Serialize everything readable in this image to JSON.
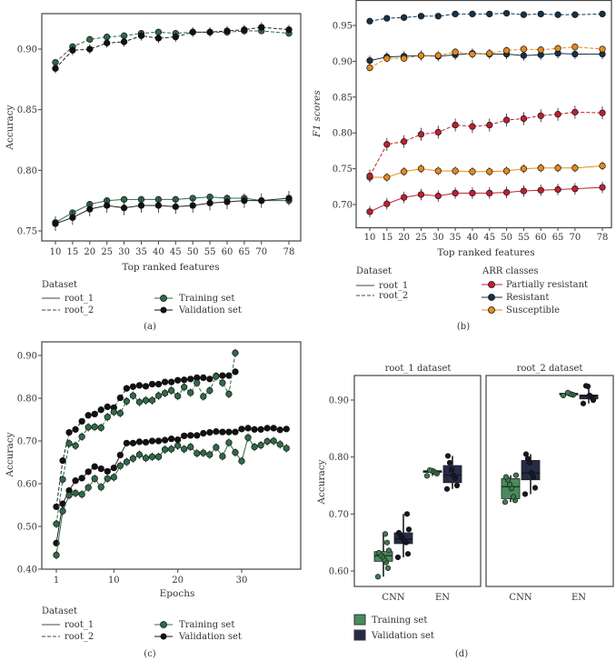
{
  "chart_data": [
    {
      "panel": "(a)",
      "type": "line",
      "xlabel": "Top ranked features",
      "ylabel": "Accuracy",
      "x": [
        10,
        15,
        20,
        25,
        30,
        35,
        40,
        45,
        50,
        55,
        60,
        65,
        70,
        78
      ],
      "yticks": [
        "0.75",
        "0.80",
        "0.85",
        "0.90"
      ],
      "ylim": [
        0.74,
        0.928
      ],
      "series": [
        {
          "name": "Training set",
          "dataset": "root_2",
          "color": "#2f6b47",
          "dash": true,
          "err": 0.002,
          "values": [
            0.889,
            0.902,
            0.908,
            0.91,
            0.911,
            0.913,
            0.914,
            0.913,
            0.914,
            0.914,
            0.914,
            0.915,
            0.915,
            0.913
          ]
        },
        {
          "name": "Validation set",
          "dataset": "root_2",
          "color": "#111111",
          "dash": true,
          "err": 0.004,
          "values": [
            0.884,
            0.899,
            0.9,
            0.905,
            0.906,
            0.911,
            0.909,
            0.91,
            0.914,
            0.914,
            0.915,
            0.916,
            0.918,
            0.916
          ]
        },
        {
          "name": "Training set",
          "dataset": "root_1",
          "color": "#2f6b47",
          "dash": false,
          "err": 0.002,
          "values": [
            0.757,
            0.765,
            0.772,
            0.775,
            0.776,
            0.776,
            0.776,
            0.776,
            0.777,
            0.778,
            0.777,
            0.777,
            0.775,
            0.775
          ]
        },
        {
          "name": "Validation set",
          "dataset": "root_1",
          "color": "#111111",
          "dash": false,
          "err": 0.006,
          "values": [
            0.756,
            0.761,
            0.768,
            0.771,
            0.769,
            0.771,
            0.771,
            0.77,
            0.771,
            0.773,
            0.774,
            0.775,
            0.775,
            0.777
          ]
        }
      ],
      "legend": {
        "dataset_title": "Dataset",
        "datasets": [
          "root_1",
          "root_2"
        ],
        "sets": [
          "Training set",
          "Validation set"
        ]
      }
    },
    {
      "panel": "(b)",
      "type": "line",
      "xlabel": "Top ranked features",
      "ylabel": "F1 scores",
      "x": [
        10,
        15,
        20,
        25,
        30,
        35,
        40,
        45,
        50,
        55,
        60,
        65,
        70,
        78
      ],
      "yticks": [
        "0.70",
        "0.75",
        "0.80",
        "0.85",
        "0.90",
        "0.95"
      ],
      "ylim": [
        0.675,
        0.97
      ],
      "series": [
        {
          "name": "Resistant",
          "dataset": "root_2",
          "color": "#163246",
          "dash": true,
          "err": 0.001,
          "values": [
            0.956,
            0.96,
            0.961,
            0.963,
            0.963,
            0.966,
            0.966,
            0.966,
            0.967,
            0.965,
            0.966,
            0.965,
            0.965,
            0.966
          ]
        },
        {
          "name": "Resistant",
          "dataset": "root_1",
          "color": "#163246",
          "dash": false,
          "err": 0.007,
          "values": [
            0.901,
            0.906,
            0.907,
            0.908,
            0.907,
            0.909,
            0.911,
            0.91,
            0.91,
            0.908,
            0.909,
            0.911,
            0.91,
            0.91
          ]
        },
        {
          "name": "Susceptible",
          "dataset": "root_2",
          "color": "#e8891c",
          "dash": true,
          "err": 0.005,
          "values": [
            0.891,
            0.904,
            0.904,
            0.908,
            0.908,
            0.913,
            0.91,
            0.911,
            0.915,
            0.917,
            0.916,
            0.918,
            0.92,
            0.917
          ]
        },
        {
          "name": "Susceptible",
          "dataset": "root_1",
          "color": "#e8891c",
          "dash": false,
          "err": 0.006,
          "values": [
            0.738,
            0.738,
            0.746,
            0.75,
            0.747,
            0.747,
            0.746,
            0.746,
            0.747,
            0.75,
            0.751,
            0.751,
            0.751,
            0.754
          ]
        },
        {
          "name": "Partially resistant",
          "dataset": "root_2",
          "color": "#c0202e",
          "dash": true,
          "err": 0.009,
          "values": [
            0.74,
            0.784,
            0.788,
            0.798,
            0.801,
            0.811,
            0.809,
            0.811,
            0.818,
            0.82,
            0.824,
            0.826,
            0.829,
            0.828
          ]
        },
        {
          "name": "Partially resistant",
          "dataset": "root_1",
          "color": "#c0202e",
          "dash": false,
          "err": 0.008,
          "values": [
            0.69,
            0.701,
            0.71,
            0.714,
            0.712,
            0.716,
            0.716,
            0.716,
            0.717,
            0.719,
            0.72,
            0.721,
            0.722,
            0.724
          ]
        }
      ],
      "legend": {
        "dataset_title": "Dataset",
        "datasets": [
          "root_1",
          "root_2"
        ],
        "class_title": "ARR classes",
        "classes": [
          "Partially resistant",
          "Resistant",
          "Susceptible"
        ]
      }
    },
    {
      "panel": "(c)",
      "type": "line",
      "xlabel": "Epochs",
      "ylabel": "Accuracy",
      "xticks": [
        1,
        10,
        20,
        30
      ],
      "yticks": [
        "0.40",
        "0.50",
        "0.60",
        "0.70",
        "0.80",
        "0.90"
      ],
      "ylim": [
        0.4,
        0.92
      ],
      "series": [
        {
          "name": "Validation set",
          "dataset": "root_2",
          "color": "#111111",
          "dash": true,
          "err": 0.006,
          "values": [
            0.546,
            0.654,
            0.72,
            0.727,
            0.746,
            0.76,
            0.763,
            0.773,
            0.78,
            0.778,
            0.801,
            0.823,
            0.827,
            0.83,
            0.828,
            0.833,
            0.833,
            0.838,
            0.838,
            0.842,
            0.843,
            0.845,
            0.848,
            0.848,
            0.845,
            0.852,
            0.853,
            0.853,
            0.862
          ]
        },
        {
          "name": "Training set",
          "dataset": "root_2",
          "color": "#2f6b47",
          "dash": true,
          "err": 0.01,
          "values": [
            0.506,
            0.61,
            0.694,
            0.689,
            0.71,
            0.732,
            0.733,
            0.731,
            0.756,
            0.768,
            0.765,
            0.793,
            0.806,
            0.791,
            0.795,
            0.795,
            0.806,
            0.812,
            0.818,
            0.805,
            0.826,
            0.813,
            0.836,
            0.804,
            0.818,
            0.851,
            0.836,
            0.81,
            0.906
          ]
        },
        {
          "name": "Validation set",
          "dataset": "root_1",
          "color": "#111111",
          "dash": false,
          "err": 0.003,
          "values": [
            0.461,
            0.553,
            0.584,
            0.607,
            0.613,
            0.628,
            0.64,
            0.635,
            0.629,
            0.637,
            0.667,
            0.695,
            0.695,
            0.698,
            0.697,
            0.7,
            0.7,
            0.702,
            0.705,
            0.703,
            0.712,
            0.713,
            0.713,
            0.718,
            0.72,
            0.722,
            0.721,
            0.721,
            0.721,
            0.728,
            0.73,
            0.727,
            0.727,
            0.73,
            0.73,
            0.726,
            0.728
          ]
        },
        {
          "name": "Training set",
          "dataset": "root_1",
          "color": "#2f6b47",
          "dash": false,
          "err": 0.01,
          "values": [
            0.433,
            0.536,
            0.573,
            0.578,
            0.575,
            0.591,
            0.612,
            0.592,
            0.612,
            0.615,
            0.642,
            0.651,
            0.659,
            0.668,
            0.66,
            0.663,
            0.663,
            0.68,
            0.681,
            0.689,
            0.681,
            0.686,
            0.671,
            0.672,
            0.668,
            0.685,
            0.664,
            0.696,
            0.673,
            0.653,
            0.708,
            0.686,
            0.69,
            0.699,
            0.7,
            0.692,
            0.683
          ]
        }
      ],
      "legend": {
        "dataset_title": "Dataset",
        "datasets": [
          "root_1",
          "root_2"
        ],
        "sets": [
          "Training set",
          "Validation set"
        ]
      }
    },
    {
      "panel": "(d)",
      "type": "box",
      "ylabel": "Accuracy",
      "yticks": [
        "0.60",
        "0.70",
        "0.80",
        "0.90"
      ],
      "categories": [
        "CNN",
        "EN"
      ],
      "facets": [
        {
          "title": "root_1 dataset",
          "groups": [
            {
              "model": "CNN",
              "set": "Training set",
              "stats": [
                0.59,
                0.617,
                0.627,
                0.634,
                0.665
              ],
              "points": [
                0.59,
                0.605,
                0.615,
                0.62,
                0.625,
                0.628,
                0.632,
                0.636,
                0.65,
                0.665
              ]
            },
            {
              "model": "CNN",
              "set": "Validation set",
              "stats": [
                0.624,
                0.648,
                0.656,
                0.667,
                0.7
              ],
              "points": [
                0.624,
                0.63,
                0.65,
                0.653,
                0.658,
                0.662,
                0.667,
                0.673,
                0.7
              ]
            },
            {
              "model": "EN",
              "set": "Training set",
              "stats": [
                0.767,
                0.773,
                0.775,
                0.776,
                0.777
              ],
              "points": [
                0.767,
                0.771,
                0.773,
                0.775,
                0.776,
                0.777
              ]
            },
            {
              "model": "EN",
              "set": "Validation set",
              "stats": [
                0.744,
                0.755,
                0.768,
                0.785,
                0.802
              ],
              "points": [
                0.744,
                0.75,
                0.763,
                0.768,
                0.778,
                0.79,
                0.802
              ]
            }
          ]
        },
        {
          "title": "root_2 dataset",
          "groups": [
            {
              "model": "CNN",
              "set": "Training set",
              "stats": [
                0.721,
                0.727,
                0.748,
                0.762,
                0.768
              ],
              "points": [
                0.721,
                0.724,
                0.73,
                0.745,
                0.752,
                0.76,
                0.765,
                0.768
              ]
            },
            {
              "model": "CNN",
              "set": "Validation set",
              "stats": [
                0.735,
                0.76,
                0.772,
                0.794,
                0.805
              ],
              "points": [
                0.735,
                0.746,
                0.765,
                0.772,
                0.79,
                0.797,
                0.805
              ]
            },
            {
              "model": "EN",
              "set": "Training set",
              "stats": [
                0.908,
                0.909,
                0.91,
                0.912,
                0.913
              ],
              "points": [
                0.908,
                0.909,
                0.91,
                0.911,
                0.913
              ]
            },
            {
              "model": "EN",
              "set": "Validation set",
              "stats": [
                0.894,
                0.902,
                0.907,
                0.909,
                0.925
              ],
              "points": [
                0.894,
                0.9,
                0.905,
                0.908,
                0.924,
                0.925
              ]
            }
          ]
        }
      ],
      "legend": {
        "sets": [
          "Training set",
          "Validation set"
        ]
      },
      "colors": {
        "Training set": "#4a8a5c",
        "Validation set": "#262b47"
      }
    }
  ],
  "captions": [
    "(a)",
    "(b)",
    "(c)",
    "(d)"
  ]
}
